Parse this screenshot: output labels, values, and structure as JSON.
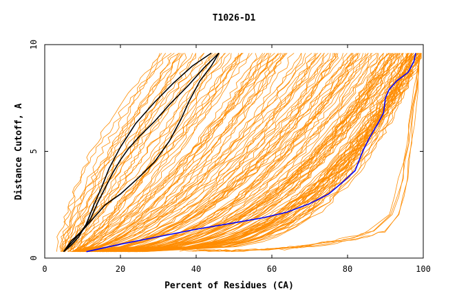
{
  "chart_data": {
    "type": "line",
    "title": "T1026-D1",
    "xlabel": "Percent of Residues (CA)",
    "ylabel": "Distance Cutoff, A",
    "xlim": [
      0,
      100
    ],
    "ylim": [
      0,
      10
    ],
    "x_ticks": [
      "0",
      "20",
      "40",
      "60",
      "80",
      "100"
    ],
    "y_ticks": [
      "0",
      "5",
      "10"
    ],
    "grid": false,
    "colors": {
      "background_models": "#ff8c00",
      "top_models": "#000000",
      "highlight_model": "#0000ff"
    },
    "background_models": {
      "note_count": "many",
      "bands": [
        {
          "x_at_0_3": 5,
          "x_at_10": 30
        },
        {
          "x_at_0_3": 8,
          "x_at_10": 55
        },
        {
          "x_at_0_3": 10,
          "x_at_10": 75
        },
        {
          "x_at_0_3": 15,
          "x_at_10": 90
        },
        {
          "x_at_0_3": 20,
          "x_at_10": 97
        },
        {
          "x_at_0_3": 25,
          "x_at_10": 99
        }
      ]
    },
    "series": [
      {
        "role": "top",
        "x": [
          5,
          7,
          9,
          11,
          13,
          15,
          17,
          20,
          24,
          29,
          34,
          39,
          44
        ],
        "y": [
          0.3,
          0.6,
          1.0,
          1.6,
          2.5,
          3.3,
          4.2,
          5.2,
          6.3,
          7.3,
          8.2,
          9.0,
          9.6
        ]
      },
      {
        "role": "top",
        "x": [
          5,
          7,
          9,
          12,
          14,
          16,
          18,
          20,
          22,
          25,
          29,
          33,
          38,
          42,
          46
        ],
        "y": [
          0.3,
          0.7,
          1.1,
          1.8,
          2.6,
          3.3,
          4.0,
          4.6,
          5.1,
          5.7,
          6.4,
          7.2,
          8.1,
          8.9,
          9.6
        ]
      },
      {
        "role": "top",
        "x": [
          5,
          7,
          10,
          13,
          16,
          20,
          25,
          29,
          33,
          36,
          38,
          41,
          44,
          46
        ],
        "y": [
          0.3,
          0.8,
          1.3,
          1.9,
          2.5,
          3.0,
          3.8,
          4.5,
          5.5,
          6.5,
          7.3,
          8.3,
          9.0,
          9.6
        ]
      },
      {
        "role": "highlight",
        "x": [
          11,
          20,
          30,
          40,
          50,
          58,
          64,
          70,
          75,
          79,
          82,
          84,
          86,
          88,
          89.5,
          90,
          91,
          93,
          96,
          97.5,
          98
        ],
        "y": [
          0.3,
          0.65,
          1.0,
          1.35,
          1.65,
          1.9,
          2.15,
          2.55,
          3.0,
          3.6,
          4.1,
          5.0,
          5.7,
          6.3,
          6.8,
          7.5,
          7.9,
          8.3,
          8.7,
          9.2,
          9.6
        ]
      }
    ]
  }
}
